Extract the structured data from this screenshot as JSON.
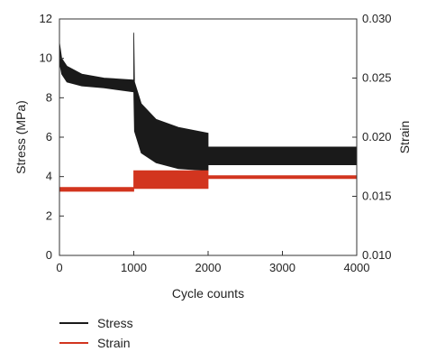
{
  "chart_data": {
    "type": "line",
    "xlabel": "Cycle counts",
    "ylabel_left": "Stress (MPa)",
    "ylabel_right": "Strain",
    "xlim": [
      0,
      4000
    ],
    "ylim_left": [
      0,
      12
    ],
    "ylim_right": [
      0.01,
      0.03
    ],
    "x_ticks": [
      "0",
      "1000",
      "2000",
      "3000",
      "4000"
    ],
    "y_left_ticks": [
      "0",
      "2",
      "4",
      "6",
      "8",
      "10",
      "12"
    ],
    "y_right_ticks": [
      "0.010",
      "0.015",
      "0.020",
      "0.025",
      "0.030"
    ],
    "grid": false,
    "legend_position": "bottom-left, below plot",
    "series": [
      {
        "name": "Stress",
        "color": "#1a1a1a",
        "axis": "left",
        "upper": [
          [
            0,
            10.8
          ],
          [
            30,
            10.0
          ],
          [
            100,
            9.6
          ],
          [
            300,
            9.2
          ],
          [
            600,
            9.0
          ],
          [
            1000,
            8.9
          ],
          [
            1000,
            11.3
          ],
          [
            1010,
            8.8
          ],
          [
            1100,
            7.7
          ],
          [
            1300,
            6.9
          ],
          [
            1600,
            6.5
          ],
          [
            2000,
            6.2
          ],
          [
            2000,
            5.5
          ],
          [
            4000,
            5.5
          ]
        ],
        "lower": [
          [
            0,
            9.8
          ],
          [
            30,
            9.2
          ],
          [
            100,
            8.8
          ],
          [
            300,
            8.6
          ],
          [
            600,
            8.5
          ],
          [
            1000,
            8.3
          ],
          [
            1010,
            6.3
          ],
          [
            1100,
            5.2
          ],
          [
            1300,
            4.7
          ],
          [
            1600,
            4.4
          ],
          [
            2000,
            4.3
          ],
          [
            2000,
            4.6
          ],
          [
            4000,
            4.6
          ]
        ]
      },
      {
        "name": "Strain",
        "color": "#d2351f",
        "axis": "left",
        "upper": [
          [
            0,
            3.45
          ],
          [
            1000,
            3.45
          ],
          [
            1000,
            4.3
          ],
          [
            2000,
            4.3
          ],
          [
            2000,
            4.05
          ],
          [
            4000,
            4.05
          ]
        ],
        "lower": [
          [
            0,
            3.25
          ],
          [
            1000,
            3.25
          ],
          [
            1000,
            3.4
          ],
          [
            2000,
            3.4
          ],
          [
            2000,
            3.9
          ],
          [
            4000,
            3.9
          ]
        ]
      }
    ]
  }
}
